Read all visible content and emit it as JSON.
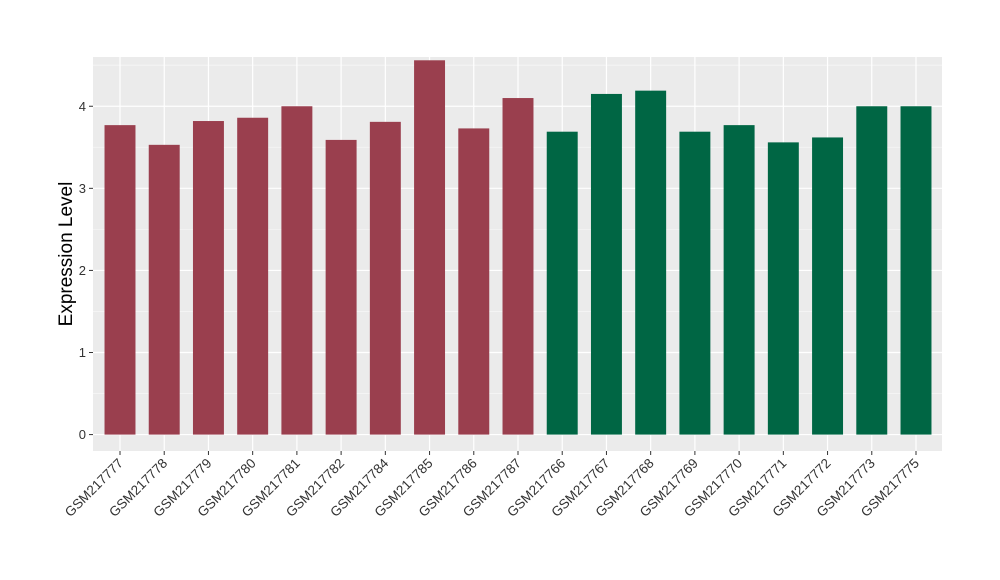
{
  "chart_data": {
    "type": "bar",
    "title": "",
    "xlabel": "",
    "ylabel": "Expression Level",
    "ylim": [
      -0.2,
      4.6
    ],
    "yticks": [
      0,
      1,
      2,
      3,
      4
    ],
    "grid": true,
    "legend": "none",
    "colors": {
      "group_a": "#9a3f4e",
      "group_b": "#006644",
      "panel_bg": "#ebebeb",
      "grid": "#ffffff"
    },
    "categories": [
      "GSM217777",
      "GSM217778",
      "GSM217779",
      "GSM217780",
      "GSM217781",
      "GSM217782",
      "GSM217784",
      "GSM217785",
      "GSM217786",
      "GSM217787",
      "GSM217766",
      "GSM217767",
      "GSM217768",
      "GSM217769",
      "GSM217770",
      "GSM217771",
      "GSM217772",
      "GSM217773",
      "GSM217775"
    ],
    "values": [
      3.77,
      3.53,
      3.82,
      3.86,
      4.0,
      3.59,
      3.81,
      4.56,
      3.73,
      4.1,
      3.69,
      4.15,
      4.19,
      3.69,
      3.77,
      3.56,
      3.62,
      4.0,
      4.0
    ],
    "groups": [
      "a",
      "a",
      "a",
      "a",
      "a",
      "a",
      "a",
      "a",
      "a",
      "a",
      "b",
      "b",
      "b",
      "b",
      "b",
      "b",
      "b",
      "b",
      "b"
    ]
  }
}
